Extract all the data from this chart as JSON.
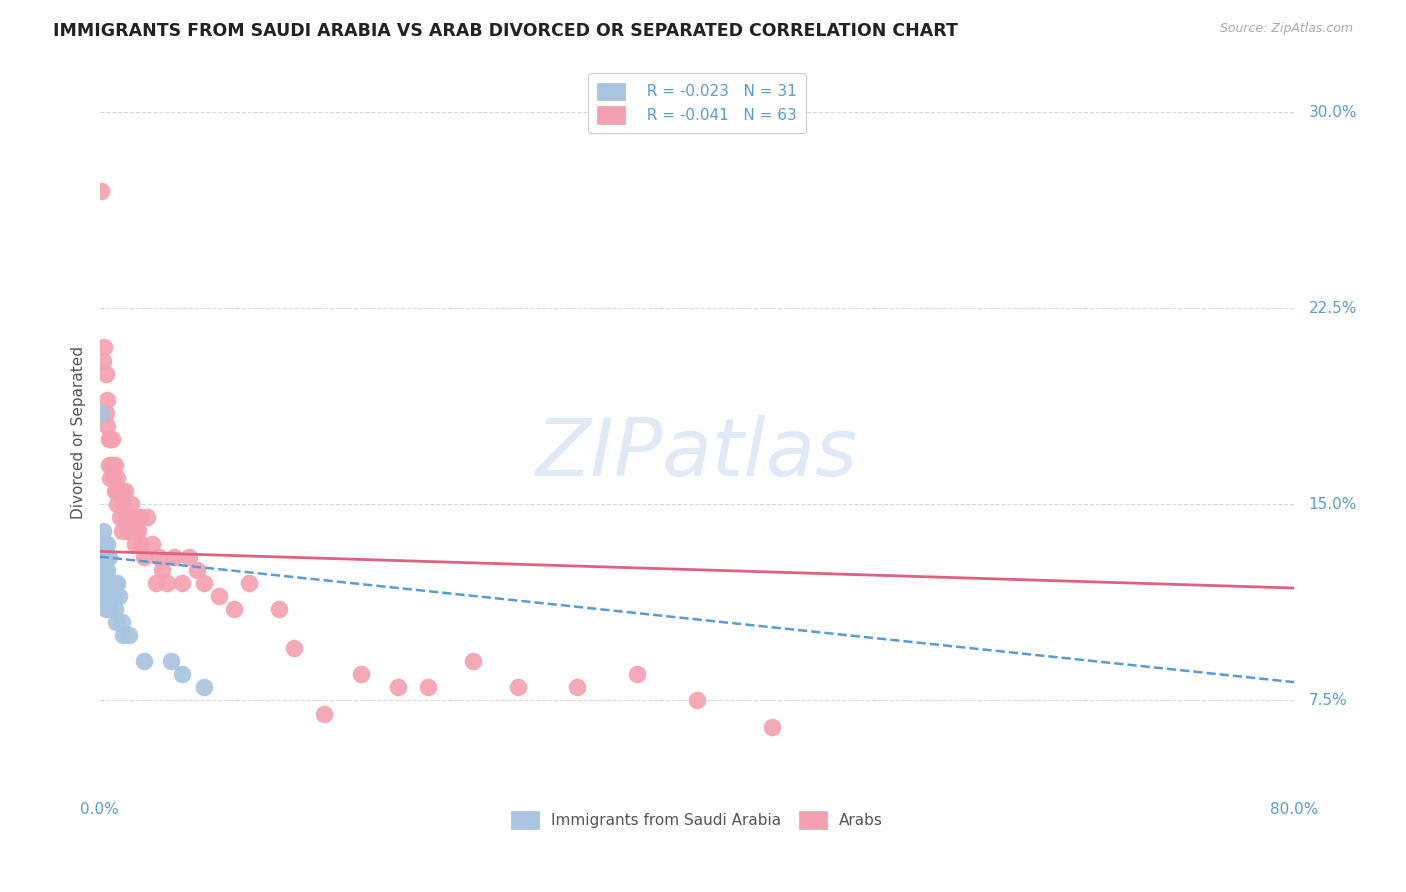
{
  "title": "IMMIGRANTS FROM SAUDI ARABIA VS ARAB DIVORCED OR SEPARATED CORRELATION CHART",
  "source": "Source: ZipAtlas.com",
  "ylabel": "Divorced or Separated",
  "xmin": 0.0,
  "xmax": 0.8,
  "ymin": 0.04,
  "ymax": 0.315,
  "legend_blue_r": "R = -0.023",
  "legend_blue_n": "N = 31",
  "legend_pink_r": "R = -0.041",
  "legend_pink_n": "N = 63",
  "watermark": "ZIPatlas",
  "watermark_color": "#c8d8f0",
  "background_color": "#ffffff",
  "grid_color": "#d0d8e8",
  "title_color": "#222222",
  "axis_color": "#5b9bd5",
  "blue_dot_color": "#a8c4e0",
  "pink_dot_color": "#f4a0b0",
  "blue_line_color": "#5b9bd5",
  "pink_line_color": "#e06080",
  "ytick_positions": [
    0.075,
    0.15,
    0.225,
    0.3
  ],
  "ytick_labels": [
    "7.5%",
    "15.0%",
    "22.5%",
    "30.0%"
  ],
  "blue_scatter_x": [
    0.001,
    0.001,
    0.002,
    0.002,
    0.003,
    0.003,
    0.003,
    0.004,
    0.004,
    0.004,
    0.005,
    0.005,
    0.005,
    0.006,
    0.006,
    0.007,
    0.007,
    0.008,
    0.009,
    0.01,
    0.01,
    0.011,
    0.012,
    0.013,
    0.015,
    0.016,
    0.02,
    0.03,
    0.048,
    0.055,
    0.07
  ],
  "blue_scatter_y": [
    0.185,
    0.13,
    0.14,
    0.12,
    0.135,
    0.125,
    0.115,
    0.13,
    0.12,
    0.11,
    0.135,
    0.125,
    0.115,
    0.13,
    0.115,
    0.12,
    0.11,
    0.12,
    0.115,
    0.12,
    0.11,
    0.105,
    0.12,
    0.115,
    0.105,
    0.1,
    0.1,
    0.09,
    0.09,
    0.085,
    0.08
  ],
  "pink_scatter_x": [
    0.001,
    0.002,
    0.003,
    0.004,
    0.004,
    0.005,
    0.005,
    0.006,
    0.006,
    0.007,
    0.007,
    0.008,
    0.008,
    0.009,
    0.01,
    0.01,
    0.011,
    0.012,
    0.012,
    0.013,
    0.014,
    0.015,
    0.015,
    0.016,
    0.017,
    0.018,
    0.019,
    0.02,
    0.021,
    0.022,
    0.023,
    0.024,
    0.025,
    0.026,
    0.027,
    0.028,
    0.03,
    0.032,
    0.035,
    0.038,
    0.04,
    0.042,
    0.045,
    0.05,
    0.055,
    0.06,
    0.065,
    0.07,
    0.08,
    0.09,
    0.1,
    0.12,
    0.13,
    0.15,
    0.175,
    0.2,
    0.22,
    0.25,
    0.28,
    0.32,
    0.36,
    0.4,
    0.45
  ],
  "pink_scatter_y": [
    0.27,
    0.205,
    0.21,
    0.2,
    0.185,
    0.18,
    0.19,
    0.175,
    0.165,
    0.175,
    0.16,
    0.165,
    0.175,
    0.16,
    0.155,
    0.165,
    0.155,
    0.16,
    0.15,
    0.155,
    0.145,
    0.155,
    0.14,
    0.15,
    0.155,
    0.145,
    0.14,
    0.14,
    0.15,
    0.14,
    0.145,
    0.135,
    0.14,
    0.14,
    0.145,
    0.135,
    0.13,
    0.145,
    0.135,
    0.12,
    0.13,
    0.125,
    0.12,
    0.13,
    0.12,
    0.13,
    0.125,
    0.12,
    0.115,
    0.11,
    0.12,
    0.11,
    0.095,
    0.07,
    0.085,
    0.08,
    0.08,
    0.09,
    0.08,
    0.08,
    0.085,
    0.075,
    0.065
  ],
  "blue_line_x0": 0.0,
  "blue_line_x1": 0.8,
  "blue_line_y0": 0.13,
  "blue_line_y1": 0.082,
  "pink_line_x0": 0.0,
  "pink_line_x1": 0.8,
  "pink_line_y0": 0.132,
  "pink_line_y1": 0.118
}
